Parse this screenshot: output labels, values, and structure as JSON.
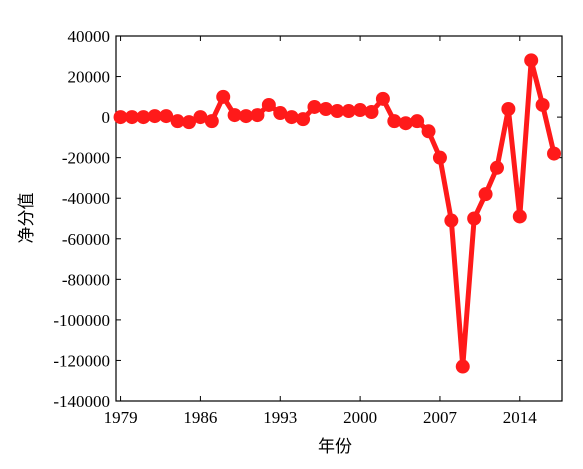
{
  "chart_data": {
    "type": "line",
    "xlabel": "年份",
    "ylabel": "净分值",
    "x": [
      1979,
      1980,
      1981,
      1982,
      1983,
      1984,
      1985,
      1986,
      1987,
      1988,
      1989,
      1990,
      1991,
      1992,
      1993,
      1994,
      1995,
      1996,
      1997,
      1998,
      1999,
      2000,
      2001,
      2002,
      2003,
      2004,
      2005,
      2006,
      2007,
      2008,
      2009,
      2010,
      2011,
      2012,
      2013,
      2014,
      2015,
      2016,
      2017
    ],
    "series": [
      {
        "color": "#ff1a1a",
        "values": [
          0,
          0,
          0,
          500,
          500,
          -2000,
          -2500,
          0,
          -2000,
          10000,
          1000,
          500,
          1000,
          6000,
          2000,
          0,
          -1000,
          5000,
          4000,
          3000,
          3000,
          3500,
          2500,
          9000,
          -2000,
          -3000,
          -2000,
          -7000,
          -20000,
          -51000,
          -123000,
          -50000,
          -38000,
          -25000,
          4000,
          -49000,
          28000,
          6000,
          -18000
        ]
      }
    ],
    "xlim": [
      1978.6,
      2017.7
    ],
    "xticks": [
      1979,
      1986,
      1993,
      2000,
      2007,
      2014
    ],
    "ylim": [
      -140000,
      40000
    ],
    "yticks": [
      -140000,
      -120000,
      -100000,
      -80000,
      -60000,
      -40000,
      -20000,
      0,
      20000,
      40000
    ]
  }
}
